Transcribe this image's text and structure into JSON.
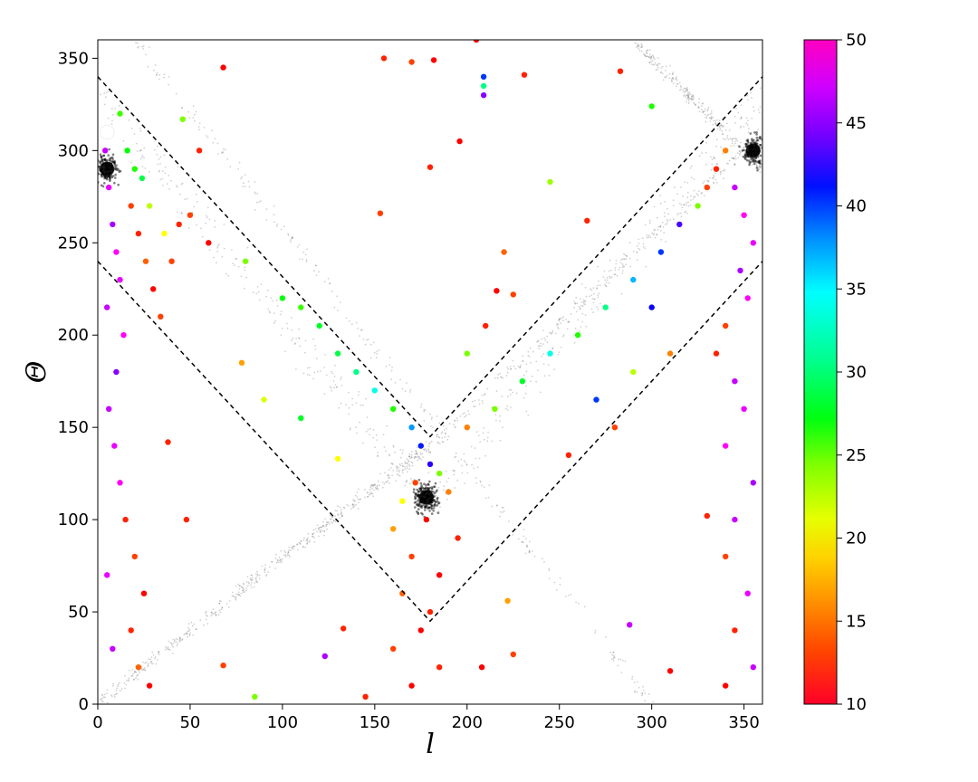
{
  "chart_data": {
    "type": "scatter",
    "title": "",
    "xlabel": "l",
    "ylabel": "Θ",
    "xlim": [
      0,
      360
    ],
    "ylim": [
      0,
      360
    ],
    "xticks": [
      0,
      50,
      100,
      150,
      200,
      250,
      300,
      350
    ],
    "yticks": [
      0,
      50,
      100,
      150,
      200,
      250,
      300,
      350
    ],
    "grid": false,
    "legend": "none",
    "colorbar": {
      "min": 10,
      "max": 50,
      "ticks": [
        10,
        15,
        20,
        25,
        30,
        35,
        40,
        45,
        50
      ],
      "colormap": "gist_rainbow"
    },
    "background_points_color": "#000000",
    "marker_point": {
      "x": 5,
      "y": 310,
      "color": "#ffffff"
    },
    "dashed_boundaries": [
      {
        "name": "",
        "x": [
          0,
          180,
          360
        ],
        "y": [
          340,
          145,
          340
        ]
      },
      {
        "name": "",
        "x": [
          0,
          180,
          360
        ],
        "y": [
          240,
          45,
          240
        ]
      }
    ],
    "background_tracks": [
      {
        "x": [
          0,
          180,
          360
        ],
        "y": [
          330,
          110,
          330
        ],
        "spread": 18
      },
      {
        "x": [
          20,
          300
        ],
        "y": [
          360,
          0
        ],
        "spread": 8
      },
      {
        "x": [
          0,
          100,
          180
        ],
        "y": [
          0,
          80,
          140
        ],
        "spread": 6
      },
      {
        "x": [
          180,
          360
        ],
        "y": [
          140,
          310
        ],
        "spread": 6
      },
      {
        "x": [
          290,
          360
        ],
        "y": [
          360,
          290
        ],
        "spread": 6
      }
    ],
    "dense_clusters": [
      {
        "x": 178,
        "y": 112,
        "count": 200
      },
      {
        "x": 5,
        "y": 290,
        "count": 150
      },
      {
        "x": 355,
        "y": 300,
        "count": 150
      }
    ],
    "colored_points": [
      {
        "x": 4,
        "y": 300,
        "c": 48
      },
      {
        "x": 6,
        "y": 280,
        "c": 49
      },
      {
        "x": 8,
        "y": 260,
        "c": 47
      },
      {
        "x": 10,
        "y": 245,
        "c": 50
      },
      {
        "x": 12,
        "y": 230,
        "c": 49
      },
      {
        "x": 5,
        "y": 215,
        "c": 48
      },
      {
        "x": 14,
        "y": 200,
        "c": 50
      },
      {
        "x": 18,
        "y": 270,
        "c": 12
      },
      {
        "x": 22,
        "y": 255,
        "c": 11
      },
      {
        "x": 26,
        "y": 240,
        "c": 13
      },
      {
        "x": 30,
        "y": 225,
        "c": 10
      },
      {
        "x": 34,
        "y": 210,
        "c": 12
      },
      {
        "x": 20,
        "y": 290,
        "c": 25
      },
      {
        "x": 24,
        "y": 285,
        "c": 28
      },
      {
        "x": 16,
        "y": 300,
        "c": 26
      },
      {
        "x": 12,
        "y": 320,
        "c": 24
      },
      {
        "x": 28,
        "y": 270,
        "c": 20
      },
      {
        "x": 36,
        "y": 255,
        "c": 18
      },
      {
        "x": 40,
        "y": 240,
        "c": 12
      },
      {
        "x": 44,
        "y": 260,
        "c": 11
      },
      {
        "x": 10,
        "y": 180,
        "c": 46
      },
      {
        "x": 6,
        "y": 160,
        "c": 48
      },
      {
        "x": 9,
        "y": 140,
        "c": 49
      },
      {
        "x": 12,
        "y": 120,
        "c": 50
      },
      {
        "x": 15,
        "y": 100,
        "c": 11
      },
      {
        "x": 20,
        "y": 80,
        "c": 12
      },
      {
        "x": 25,
        "y": 60,
        "c": 10
      },
      {
        "x": 18,
        "y": 40,
        "c": 11
      },
      {
        "x": 22,
        "y": 20,
        "c": 13
      },
      {
        "x": 28,
        "y": 10,
        "c": 10
      },
      {
        "x": 8,
        "y": 30,
        "c": 48
      },
      {
        "x": 5,
        "y": 70,
        "c": 49
      },
      {
        "x": 50,
        "y": 265,
        "c": 12
      },
      {
        "x": 60,
        "y": 250,
        "c": 10
      },
      {
        "x": 80,
        "y": 240,
        "c": 22
      },
      {
        "x": 100,
        "y": 220,
        "c": 26
      },
      {
        "x": 110,
        "y": 215,
        "c": 24
      },
      {
        "x": 120,
        "y": 205,
        "c": 27
      },
      {
        "x": 130,
        "y": 190,
        "c": 28
      },
      {
        "x": 140,
        "y": 180,
        "c": 30
      },
      {
        "x": 150,
        "y": 170,
        "c": 33
      },
      {
        "x": 160,
        "y": 160,
        "c": 25
      },
      {
        "x": 55,
        "y": 300,
        "c": 11
      },
      {
        "x": 68,
        "y": 345,
        "c": 10
      },
      {
        "x": 155,
        "y": 350,
        "c": 11
      },
      {
        "x": 170,
        "y": 348,
        "c": 12
      },
      {
        "x": 182,
        "y": 349,
        "c": 10
      },
      {
        "x": 205,
        "y": 360,
        "c": 10
      },
      {
        "x": 209,
        "y": 340,
        "c": 40
      },
      {
        "x": 209,
        "y": 330,
        "c": 46
      },
      {
        "x": 209,
        "y": 335,
        "c": 30
      },
      {
        "x": 231,
        "y": 341,
        "c": 11
      },
      {
        "x": 196,
        "y": 305,
        "c": 10
      },
      {
        "x": 180,
        "y": 291,
        "c": 11
      },
      {
        "x": 153,
        "y": 266,
        "c": 12
      },
      {
        "x": 220,
        "y": 245,
        "c": 13
      },
      {
        "x": 283,
        "y": 343,
        "c": 11
      },
      {
        "x": 300,
        "y": 324,
        "c": 25
      },
      {
        "x": 170,
        "y": 150,
        "c": 37
      },
      {
        "x": 175,
        "y": 140,
        "c": 41
      },
      {
        "x": 180,
        "y": 130,
        "c": 43
      },
      {
        "x": 172,
        "y": 120,
        "c": 12
      },
      {
        "x": 185,
        "y": 125,
        "c": 22
      },
      {
        "x": 165,
        "y": 110,
        "c": 18
      },
      {
        "x": 190,
        "y": 115,
        "c": 14
      },
      {
        "x": 178,
        "y": 100,
        "c": 10
      },
      {
        "x": 160,
        "y": 95,
        "c": 15
      },
      {
        "x": 195,
        "y": 90,
        "c": 11
      },
      {
        "x": 170,
        "y": 80,
        "c": 12
      },
      {
        "x": 185,
        "y": 70,
        "c": 10
      },
      {
        "x": 165,
        "y": 60,
        "c": 13
      },
      {
        "x": 180,
        "y": 50,
        "c": 11
      },
      {
        "x": 175,
        "y": 40,
        "c": 10
      },
      {
        "x": 160,
        "y": 30,
        "c": 12
      },
      {
        "x": 185,
        "y": 20,
        "c": 11
      },
      {
        "x": 170,
        "y": 10,
        "c": 10
      },
      {
        "x": 200,
        "y": 150,
        "c": 14
      },
      {
        "x": 215,
        "y": 160,
        "c": 22
      },
      {
        "x": 230,
        "y": 175,
        "c": 27
      },
      {
        "x": 245,
        "y": 190,
        "c": 33
      },
      {
        "x": 260,
        "y": 200,
        "c": 25
      },
      {
        "x": 275,
        "y": 215,
        "c": 30
      },
      {
        "x": 290,
        "y": 230,
        "c": 36
      },
      {
        "x": 305,
        "y": 245,
        "c": 40
      },
      {
        "x": 315,
        "y": 260,
        "c": 44
      },
      {
        "x": 325,
        "y": 270,
        "c": 22
      },
      {
        "x": 330,
        "y": 280,
        "c": 12
      },
      {
        "x": 335,
        "y": 290,
        "c": 11
      },
      {
        "x": 340,
        "y": 300,
        "c": 14
      },
      {
        "x": 345,
        "y": 280,
        "c": 48
      },
      {
        "x": 350,
        "y": 265,
        "c": 50
      },
      {
        "x": 355,
        "y": 250,
        "c": 49
      },
      {
        "x": 348,
        "y": 235,
        "c": 47
      },
      {
        "x": 352,
        "y": 220,
        "c": 50
      },
      {
        "x": 340,
        "y": 205,
        "c": 12
      },
      {
        "x": 335,
        "y": 190,
        "c": 11
      },
      {
        "x": 345,
        "y": 175,
        "c": 48
      },
      {
        "x": 350,
        "y": 160,
        "c": 49
      },
      {
        "x": 340,
        "y": 140,
        "c": 50
      },
      {
        "x": 355,
        "y": 120,
        "c": 47
      },
      {
        "x": 345,
        "y": 100,
        "c": 48
      },
      {
        "x": 340,
        "y": 80,
        "c": 12
      },
      {
        "x": 352,
        "y": 60,
        "c": 49
      },
      {
        "x": 345,
        "y": 40,
        "c": 11
      },
      {
        "x": 355,
        "y": 20,
        "c": 48
      },
      {
        "x": 340,
        "y": 10,
        "c": 10
      },
      {
        "x": 330,
        "y": 102,
        "c": 11
      },
      {
        "x": 310,
        "y": 18,
        "c": 10
      },
      {
        "x": 290,
        "y": 180,
        "c": 20
      },
      {
        "x": 280,
        "y": 150,
        "c": 12
      },
      {
        "x": 270,
        "y": 165,
        "c": 40
      },
      {
        "x": 255,
        "y": 135,
        "c": 11
      },
      {
        "x": 225,
        "y": 27,
        "c": 12
      },
      {
        "x": 208,
        "y": 20,
        "c": 10
      },
      {
        "x": 145,
        "y": 4,
        "c": 11
      },
      {
        "x": 85,
        "y": 4,
        "c": 22
      },
      {
        "x": 48,
        "y": 100,
        "c": 11
      },
      {
        "x": 68,
        "y": 21,
        "c": 12
      },
      {
        "x": 123,
        "y": 26,
        "c": 47
      },
      {
        "x": 133,
        "y": 41,
        "c": 11
      },
      {
        "x": 288,
        "y": 43,
        "c": 48
      },
      {
        "x": 222,
        "y": 56,
        "c": 15
      },
      {
        "x": 130,
        "y": 133,
        "c": 18
      },
      {
        "x": 110,
        "y": 155,
        "c": 27
      },
      {
        "x": 90,
        "y": 165,
        "c": 19
      },
      {
        "x": 78,
        "y": 185,
        "c": 15
      },
      {
        "x": 38,
        "y": 142,
        "c": 11
      },
      {
        "x": 46,
        "y": 317,
        "c": 22
      },
      {
        "x": 265,
        "y": 262,
        "c": 11
      },
      {
        "x": 245,
        "y": 283,
        "c": 21
      },
      {
        "x": 300,
        "y": 215,
        "c": 42
      },
      {
        "x": 310,
        "y": 190,
        "c": 14
      },
      {
        "x": 216,
        "y": 224,
        "c": 10
      },
      {
        "x": 225,
        "y": 222,
        "c": 12
      },
      {
        "x": 210,
        "y": 205,
        "c": 11
      },
      {
        "x": 200,
        "y": 190,
        "c": 22
      }
    ]
  }
}
